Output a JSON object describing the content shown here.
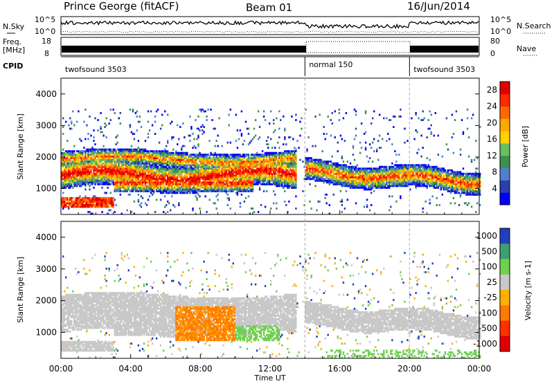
{
  "header": {
    "station": "Prince George (fitACF)",
    "beam": "Beam 01",
    "date": "16/Jun/2014"
  },
  "panels": {
    "nsky_label": "N.Sky",
    "nsky_ticks": [
      "10^5",
      "10^0"
    ],
    "nsearch_label": "N.Search",
    "freq_label_top": "Freq.",
    "freq_label_bottom": "[MHz]",
    "freq_ticks": [
      "18",
      "8"
    ],
    "nave_ticks": [
      "80",
      "0"
    ],
    "nave_label": "Nave",
    "cpid_label": "CPID",
    "cpid_segments": [
      {
        "name": "twofsound 3503",
        "start_h": 0,
        "end_h": 14
      },
      {
        "name": "normal 150",
        "start_h": 14,
        "end_h": 20
      },
      {
        "name": "twofsound 3503",
        "start_h": 20,
        "end_h": 24
      }
    ]
  },
  "axes": {
    "ylabel": "Slant Range [km]",
    "xlabel": "Time UT",
    "y_ticks": [
      1000,
      2000,
      3000,
      4000
    ],
    "x_ticks": [
      "00:00",
      "04:00",
      "08:00",
      "12:00",
      "16:00",
      "20:00",
      "00:00"
    ]
  },
  "chart_data": [
    {
      "type": "heatmap",
      "title": "",
      "xlabel": "Time UT",
      "ylabel": "Slant Range [km]",
      "xlim": [
        0,
        24
      ],
      "ylim": [
        180,
        4500
      ],
      "colorbar_label": "Power [dB]",
      "colorbar_ticks": [
        4,
        8,
        12,
        16,
        20,
        24,
        28
      ],
      "colorbar_range": [
        0,
        30
      ],
      "colors": [
        "#0000ff",
        "#2a3fb0",
        "#5a8fd0",
        "#3f8f4f",
        "#68c060",
        "#ffd200",
        "#ffa800",
        "#ff6a00",
        "#ff2a00",
        "#e00000"
      ]
    },
    {
      "type": "heatmap",
      "title": "",
      "xlabel": "Time UT",
      "ylabel": "Slant Range [km]",
      "xlim": [
        0,
        24
      ],
      "ylim": [
        180,
        4500
      ],
      "colorbar_label": "Velocity [m s-1]",
      "colorbar_ticks": [
        1000,
        500,
        100,
        25,
        -25,
        -100,
        -500,
        -1000
      ],
      "colors": [
        "#2040c0",
        "#3f9f6f",
        "#70d050",
        "#c8c8c8",
        "#ffb000",
        "#ff7a00",
        "#ff3000",
        "#e00000"
      ]
    }
  ]
}
